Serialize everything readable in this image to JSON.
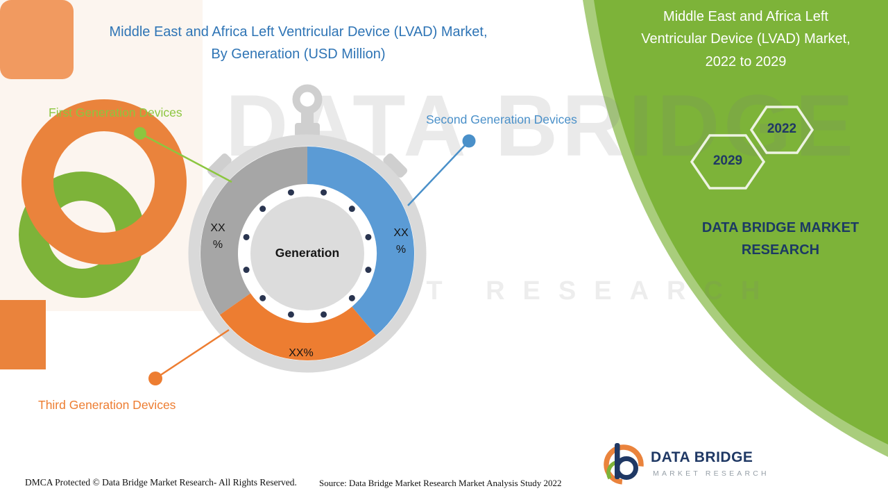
{
  "left_panel": {
    "title": "Middle East and Africa Left Ventricular Device (LVAD) Market,\nBy Generation (USD Million)"
  },
  "right_panel": {
    "title": "Middle East and Africa Left\nVentricular Device (LVAD) Market,\n2022 to 2029",
    "brand": "DATA BRIDGE MARKET RESEARCH",
    "hexagons": [
      {
        "label": "2029"
      },
      {
        "label": "2022"
      }
    ],
    "background_color": "#7db339"
  },
  "watermark": {
    "line1": "DATA BRIDGE",
    "line2": "MARKET RESEARCH"
  },
  "chart_data": {
    "type": "pie",
    "title": "Middle East and Africa Left Ventricular Device (LVAD) Market, By Generation (USD Million)",
    "unit": "USD Million",
    "center_label": "Generation",
    "legend_position": "callouts",
    "segments": [
      {
        "name": "First Generation Devices",
        "value": "XX%",
        "slice_label": "XX\n%",
        "color": "#a6a6a6",
        "callout_color": "#8cc63f",
        "start_angle": 235,
        "end_angle": 360
      },
      {
        "name": "Second Generation Devices",
        "value": "XX%",
        "slice_label": "XX\n%",
        "color": "#5b9bd5",
        "callout_color": "#4a90c9",
        "start_angle": 0,
        "end_angle": 140
      },
      {
        "name": "Third Generation Devices",
        "value": "XX%",
        "slice_label": "XX%",
        "color": "#ed7d31",
        "callout_color": "#ed7d31",
        "start_angle": 140,
        "end_angle": 235
      }
    ]
  },
  "footer": {
    "dmca": "DMCA Protected © Data Bridge Market Research- All Rights Reserved.",
    "source": "Source: Data Bridge Market Research Market Analysis Study 2022"
  },
  "logo": {
    "name": "DATA BRIDGE",
    "subtitle": "MARKET RESEARCH"
  }
}
